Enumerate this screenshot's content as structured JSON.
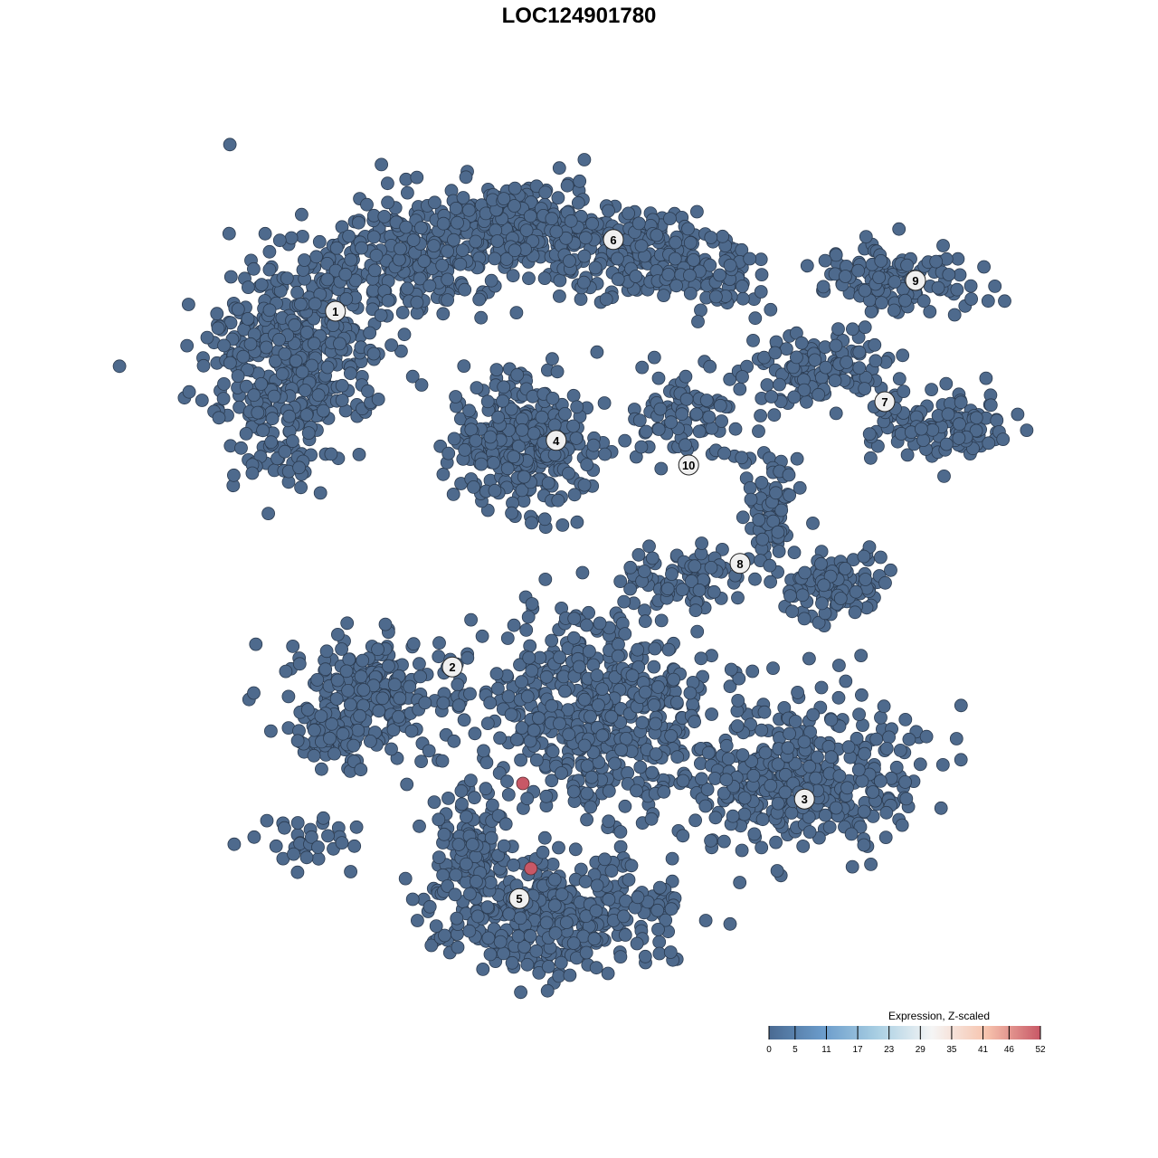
{
  "chart_data": {
    "type": "scatter",
    "title": "LOC124901780",
    "xlabel": "",
    "ylabel": "",
    "grid": false,
    "point_color_low": "#4e6a8d",
    "clusters": [
      {
        "label": "1",
        "u": -6.73,
        "v": 7.4
      },
      {
        "label": "2",
        "u": -3.5,
        "v": -2.43
      },
      {
        "label": "3",
        "u": 6.23,
        "v": -6.08
      },
      {
        "label": "4",
        "u": -0.63,
        "v": 3.83
      },
      {
        "label": "5",
        "u": -1.65,
        "v": -8.83
      },
      {
        "label": "6",
        "u": 0.95,
        "v": 9.38
      },
      {
        "label": "7",
        "u": 8.45,
        "v": 4.9
      },
      {
        "label": "8",
        "u": 4.45,
        "v": 0.43
      },
      {
        "label": "9",
        "u": 9.3,
        "v": 8.25
      },
      {
        "label": "10",
        "u": 3.03,
        "v": 3.15
      }
    ],
    "highlighted_points": [
      {
        "u": -1.55,
        "v": -5.65,
        "value": 52
      },
      {
        "u": -1.33,
        "v": -8.0,
        "value": 50
      }
    ],
    "legend": {
      "title": "Expression, Z-scaled",
      "placement": "bottom-right",
      "ticks": [
        "0",
        "5",
        "11",
        "17",
        "23",
        "29",
        "35",
        "41",
        "46",
        "52"
      ],
      "range": [
        0,
        52
      ],
      "colors": [
        "#4a6a92",
        "#6b9ccb",
        "#a9cfe3",
        "#f5f5f5",
        "#f7c4ae",
        "#c85866"
      ]
    }
  }
}
